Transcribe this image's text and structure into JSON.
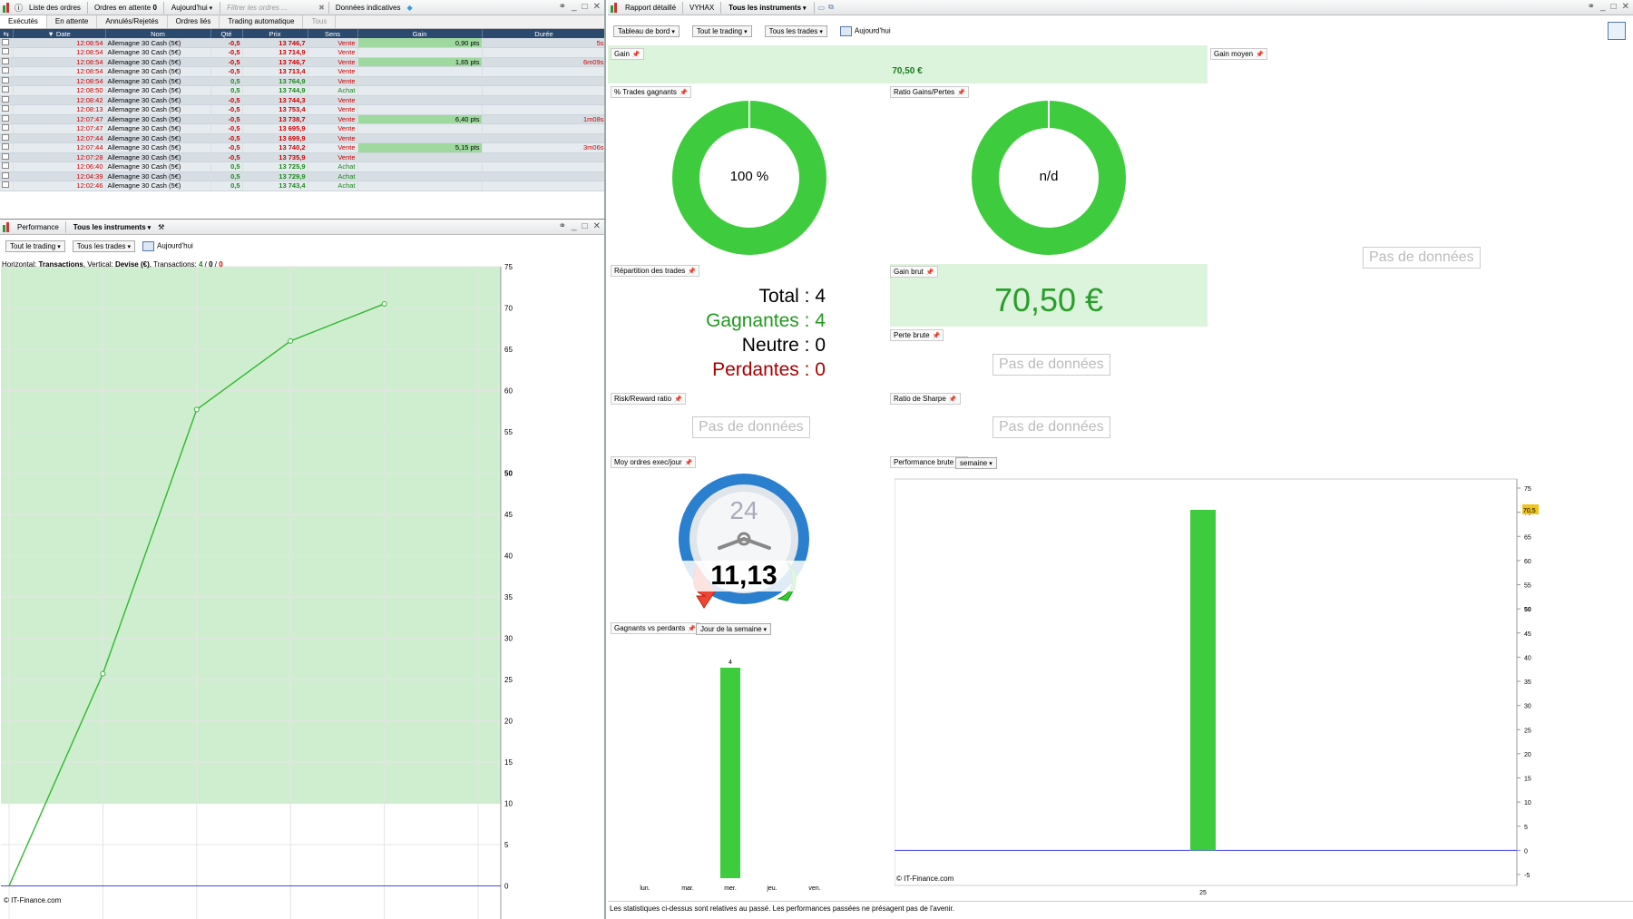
{
  "orders_window": {
    "title": "Liste des ordres",
    "pending_label": "Ordres en attente",
    "pending_count": "0",
    "period": "Aujourd'hui",
    "filter_placeholder": "Filtrer les ordres ...",
    "data_label": "Données indicatives",
    "tabs": [
      "Exécutés",
      "En attente",
      "Annulés/Rejetés",
      "Ordres liés",
      "Trading automatique",
      "Tous"
    ],
    "columns": [
      "Date",
      "Nom",
      "Qté",
      "Prix",
      "Sens",
      "Gain",
      "Durée"
    ],
    "rows": [
      {
        "time": "12:08:54",
        "name": "Allemagne 30 Cash (5€)",
        "qty": "-0,5",
        "price": "13 746,7",
        "side": "Vente",
        "gain": "0,90 pts",
        "duration": "5s"
      },
      {
        "time": "12:08:54",
        "name": "Allemagne 30 Cash (5€)",
        "qty": "-0,5",
        "price": "13 714,9",
        "side": "Vente",
        "gain": "",
        "duration": ""
      },
      {
        "time": "12:08:54",
        "name": "Allemagne 30 Cash (5€)",
        "qty": "-0,5",
        "price": "13 746,7",
        "side": "Vente",
        "gain": "1,65 pts",
        "duration": "6m09s"
      },
      {
        "time": "12:08:54",
        "name": "Allemagne 30 Cash (5€)",
        "qty": "-0,5",
        "price": "13 713,4",
        "side": "Vente",
        "gain": "",
        "duration": ""
      },
      {
        "time": "12:08:54",
        "name": "Allemagne 30 Cash (5€)",
        "qty": "0,5",
        "price": "13 764,9",
        "side": "Vente",
        "gain": "",
        "duration": ""
      },
      {
        "time": "12:08:50",
        "name": "Allemagne 30 Cash (5€)",
        "qty": "0,5",
        "price": "13 744,9",
        "side": "Achat",
        "gain": "",
        "duration": ""
      },
      {
        "time": "12:08:42",
        "name": "Allemagne 30 Cash (5€)",
        "qty": "-0,5",
        "price": "13 744,3",
        "side": "Vente",
        "gain": "",
        "duration": ""
      },
      {
        "time": "12:08:13",
        "name": "Allemagne 30 Cash (5€)",
        "qty": "-0,5",
        "price": "13 753,4",
        "side": "Vente",
        "gain": "",
        "duration": ""
      },
      {
        "time": "12:07:47",
        "name": "Allemagne 30 Cash (5€)",
        "qty": "-0,5",
        "price": "13 738,7",
        "side": "Vente",
        "gain": "6,40 pts",
        "duration": "1m08s"
      },
      {
        "time": "12:07:47",
        "name": "Allemagne 30 Cash (5€)",
        "qty": "-0,5",
        "price": "13 695,9",
        "side": "Vente",
        "gain": "",
        "duration": ""
      },
      {
        "time": "12:07:44",
        "name": "Allemagne 30 Cash (5€)",
        "qty": "-0,5",
        "price": "13 699,9",
        "side": "Vente",
        "gain": "",
        "duration": ""
      },
      {
        "time": "12:07:44",
        "name": "Allemagne 30 Cash (5€)",
        "qty": "-0,5",
        "price": "13 740,2",
        "side": "Vente",
        "gain": "5,15 pts",
        "duration": "3m06s"
      },
      {
        "time": "12:07:28",
        "name": "Allemagne 30 Cash (5€)",
        "qty": "-0,5",
        "price": "13 735,9",
        "side": "Vente",
        "gain": "",
        "duration": ""
      },
      {
        "time": "12:06:40",
        "name": "Allemagne 30 Cash (5€)",
        "qty": "0,5",
        "price": "13 725,9",
        "side": "Achat",
        "gain": "",
        "duration": ""
      },
      {
        "time": "12:04:39",
        "name": "Allemagne 30 Cash (5€)",
        "qty": "0,5",
        "price": "13 729,9",
        "side": "Achat",
        "gain": "",
        "duration": ""
      },
      {
        "time": "12:02:46",
        "name": "Allemagne 30 Cash (5€)",
        "qty": "0,5",
        "price": "13 743,4",
        "side": "Achat",
        "gain": "",
        "duration": ""
      }
    ]
  },
  "perf_window": {
    "title": "Performance",
    "instruments": "Tous les instruments",
    "filter1": "Tout le trading",
    "filter2": "Tous les trades",
    "period": "Aujourd'hui",
    "info_prefix": "Horizontal: ",
    "info_h": "Transactions",
    "info_mid": ", Vertical: ",
    "info_v": "Devise (€)",
    "info_tx": ", Transactions: ",
    "info_c1": "4",
    "info_c2": "0",
    "info_c3": "0",
    "credit": "© IT-Finance.com"
  },
  "report_window": {
    "title": "Rapport détaillé",
    "account": "VYHAX",
    "instruments": "Tous les instruments",
    "view": "Tableau de bord",
    "filter1": "Tout le trading",
    "filter2": "Tous les trades",
    "period": "Aujourd'hui",
    "gain_label": "Gain",
    "gain_value": "70,50 €",
    "avg_gain_label": "Gain moyen",
    "win_pct_label": "% Trades gagnants",
    "win_pct_value": "100 %",
    "ratio_label": "Ratio Gains/Pertes",
    "ratio_value": "n/d",
    "nodata": "Pas de données",
    "distribution_label": "Répartition des trades",
    "total": "Total : 4",
    "winners": "Gagnantes : 4",
    "neutral": "Neutre : 0",
    "losers": "Perdantes : 0",
    "gross_gain_label": "Gain brut",
    "gross_gain_value": "70,50 €",
    "gross_loss_label": "Perte brute",
    "rr_label": "Risk/Reward ratio",
    "sharpe_label": "Ratio de Sharpe",
    "avg_orders_label": "Moy ordres exec/jour",
    "avg_orders_clock": "24",
    "avg_orders_value": "11,13",
    "gross_perf_label": "Performance brute",
    "gross_perf_period": "semaine",
    "winlose_label": "Gagnants vs perdants",
    "winlose_period": "Jour de la semaine",
    "credit": "© IT-Finance.com",
    "disclaimer": "Les statistiques ci-dessus sont relatives au passé. Les performances passées ne présagent pas de l'avenir."
  },
  "colors": {
    "green": "#3ecc3e",
    "band": "#cfeecf",
    "red": "#c00000",
    "accent": "#2c4a6e"
  },
  "chart_data": [
    {
      "type": "line",
      "x": [
        0,
        1,
        2,
        3,
        4
      ],
      "y": [
        0,
        25.7,
        57.7,
        66.0,
        70.5
      ],
      "xlim": [
        0,
        5
      ],
      "ylim": [
        -5,
        75
      ],
      "xticks": [
        "0",
        "1",
        "2",
        "3",
        "4",
        "5"
      ],
      "yticks": [
        -5,
        0,
        5,
        10,
        15,
        20,
        25,
        30,
        35,
        40,
        45,
        50,
        55,
        60,
        65,
        70,
        75
      ],
      "band_min": 10,
      "grid": true
    },
    {
      "type": "bar",
      "categories": [
        "lun.",
        "mar.",
        "mer.",
        "jeu.",
        "ven."
      ],
      "values": [
        0,
        0,
        4,
        0,
        0
      ],
      "data_labels": [
        "",
        "",
        "4",
        "",
        ""
      ]
    },
    {
      "type": "bar",
      "categories": [
        "25"
      ],
      "values": [
        70.5
      ],
      "last_value_label": "70,5",
      "ylim": [
        -5,
        75
      ],
      "yticks": [
        -5,
        0,
        5,
        10,
        15,
        20,
        25,
        30,
        35,
        40,
        45,
        50,
        55,
        60,
        65,
        70,
        75
      ]
    }
  ]
}
